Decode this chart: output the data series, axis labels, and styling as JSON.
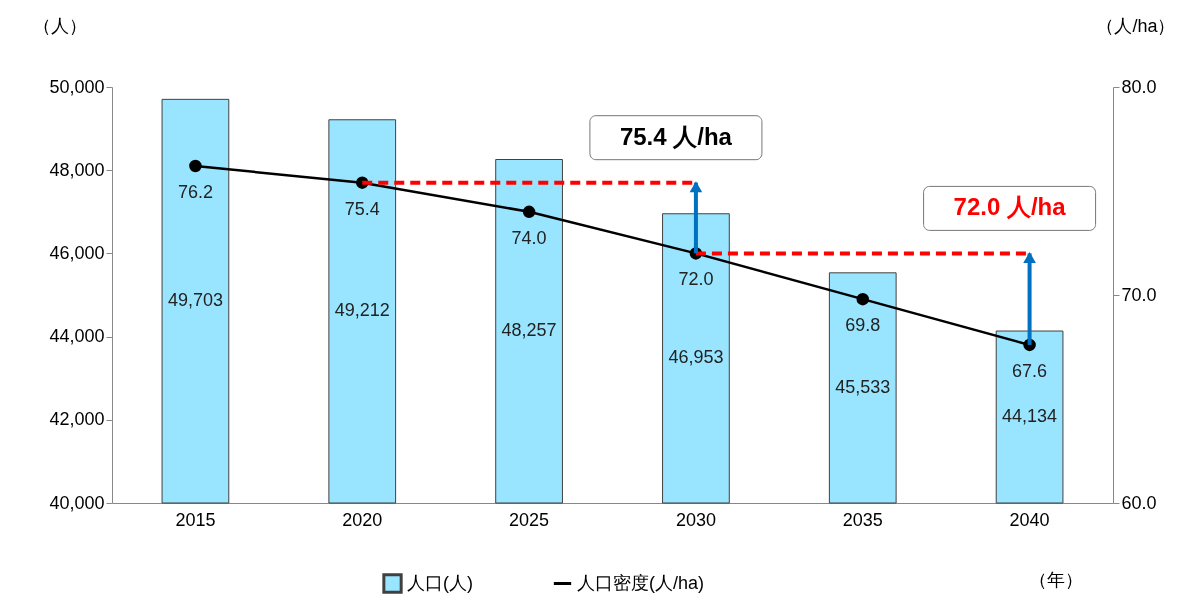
{
  "chart_data": {
    "type": "bar",
    "categories": [
      "2015",
      "2020",
      "2025",
      "2030",
      "2035",
      "2040"
    ],
    "xlabel": "（年）",
    "ylabel": "（人）",
    "y2label": "（人/ha）",
    "ylim": [
      40000,
      50000
    ],
    "yticks": [
      {
        "value": 40000,
        "label": "40,000"
      },
      {
        "value": 42000,
        "label": "42,000"
      },
      {
        "value": 44000,
        "label": "44,000"
      },
      {
        "value": 46000,
        "label": "46,000"
      },
      {
        "value": 48000,
        "label": "48,000"
      },
      {
        "value": 50000,
        "label": "50,000"
      }
    ],
    "y2lim": [
      60,
      80
    ],
    "y2ticks": [
      {
        "value": 60,
        "label": "60.0"
      },
      {
        "value": 70,
        "label": "70.0"
      },
      {
        "value": 80,
        "label": "80.0"
      }
    ],
    "series": [
      {
        "name": "人口(人)",
        "type": "bar",
        "color": "#99e5ff",
        "values": [
          49703,
          49212,
          48257,
          46953,
          45533,
          44134
        ],
        "value_labels": [
          "49,703",
          "49,212",
          "48,257",
          "46,953",
          "45,533",
          "44,134"
        ]
      },
      {
        "name": "人口密度(人/ha)",
        "type": "line",
        "axis": "y2",
        "color": "#000000",
        "marker": "circle",
        "values": [
          76.2,
          75.4,
          74.0,
          72.0,
          69.8,
          67.6
        ],
        "value_labels": [
          "76.2",
          "75.4",
          "74.0",
          "72.0",
          "69.8",
          "67.6"
        ]
      },
      {
        "type": "line",
        "axis": "y2",
        "color": "#ff0000",
        "line_style": "dashed",
        "marker": "none",
        "values": [
          null,
          75.4,
          75.4,
          75.4,
          null,
          null
        ]
      },
      {
        "type": "line",
        "axis": "y2",
        "color": "#ff0000",
        "line_style": "dashed",
        "marker": "none",
        "values": [
          null,
          null,
          null,
          72.0,
          72.0,
          72.0
        ]
      }
    ],
    "legend": "bottom",
    "grid": false,
    "annotations": [
      "75.4 人/ha",
      "72.0 人/ha"
    ]
  }
}
